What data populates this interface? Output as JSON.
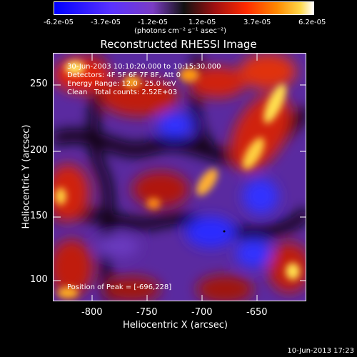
{
  "colorbar": {
    "ticks": [
      "-6.2e-05",
      "-3.7e-05",
      "-1.2e-05",
      "1.2e-05",
      "3.7e-05",
      "6.2e-05"
    ],
    "units": "(photons cm⁻² s⁻¹ asec⁻²)"
  },
  "title": "Reconstructed RHESSI Image",
  "info_lines": [
    "30-Jun-2003 10:10:20.000 to 10:15:30.000",
    "Detectors: 4F 5F 6F 7F 8F, Att 0",
    "Energy Range: 12.0 - 25.0 keV",
    "Clean   Total counts: 2.52E+03"
  ],
  "peak_text": "Position of Peak = [-696,228]",
  "axes": {
    "xlabel": "Heliocentric X (arcsec)",
    "ylabel": "Heliocentric Y (arcsec)",
    "x_ticks": [
      "-800",
      "-750",
      "-700",
      "-650"
    ],
    "y_ticks": [
      "250",
      "200",
      "150",
      "100"
    ]
  },
  "footer": "10-Jun-2013 17:23"
}
